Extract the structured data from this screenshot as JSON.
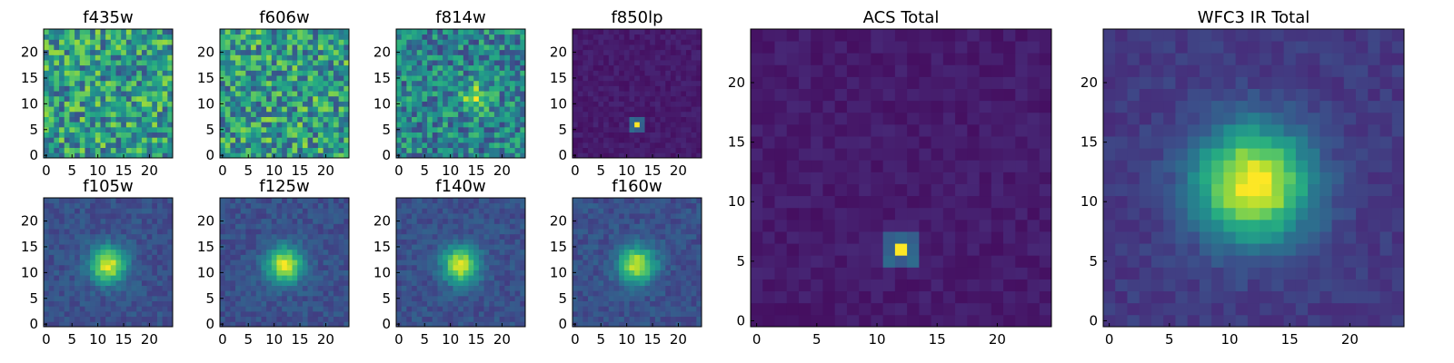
{
  "chart_data": [
    {
      "type": "heatmap",
      "title": "f435w",
      "pattern": "noise",
      "seed": 11,
      "xticks": [
        0,
        5,
        10,
        15,
        20
      ],
      "yticks": [
        0,
        5,
        10,
        15,
        20
      ]
    },
    {
      "type": "heatmap",
      "title": "f606w",
      "pattern": "noise",
      "seed": 23,
      "xticks": [
        0,
        5,
        10,
        15,
        20
      ],
      "yticks": [
        0,
        5,
        10,
        15,
        20
      ]
    },
    {
      "type": "heatmap",
      "title": "f814w",
      "pattern": "noise_blob",
      "seed": 37,
      "xticks": [
        0,
        5,
        10,
        15,
        20
      ],
      "yticks": [
        0,
        5,
        10,
        15,
        20
      ]
    },
    {
      "type": "heatmap",
      "title": "f850lp",
      "pattern": "point",
      "seed": 41,
      "xticks": [
        0,
        5,
        10,
        15,
        20
      ],
      "yticks": [
        0,
        5,
        10,
        15,
        20
      ]
    },
    {
      "type": "heatmap",
      "title": "f105w",
      "pattern": "blob",
      "seed": 53,
      "xticks": [
        0,
        5,
        10,
        15,
        20
      ],
      "yticks": [
        0,
        5,
        10,
        15,
        20
      ]
    },
    {
      "type": "heatmap",
      "title": "f125w",
      "pattern": "blob",
      "seed": 67,
      "xticks": [
        0,
        5,
        10,
        15,
        20
      ],
      "yticks": [
        0,
        5,
        10,
        15,
        20
      ]
    },
    {
      "type": "heatmap",
      "title": "f140w",
      "pattern": "blob",
      "seed": 71,
      "xticks": [
        0,
        5,
        10,
        15,
        20
      ],
      "yticks": [
        0,
        5,
        10,
        15,
        20
      ]
    },
    {
      "type": "heatmap",
      "title": "f160w",
      "pattern": "blob",
      "seed": 83,
      "xticks": [
        0,
        5,
        10,
        15,
        20
      ],
      "yticks": [
        0,
        5,
        10,
        15,
        20
      ]
    },
    {
      "type": "heatmap",
      "title": "ACS Total",
      "pattern": "point",
      "seed": 97,
      "xticks": [
        0,
        5,
        10,
        15,
        20
      ],
      "yticks": [
        0,
        5,
        10,
        15,
        20
      ]
    },
    {
      "type": "heatmap",
      "title": "WFC3 IR Total",
      "pattern": "blob_big",
      "seed": 101,
      "xticks": [
        0,
        5,
        10,
        15,
        20
      ],
      "yticks": [
        0,
        5,
        10,
        15,
        20
      ]
    }
  ],
  "grid_size": 25,
  "colormap": "viridis"
}
